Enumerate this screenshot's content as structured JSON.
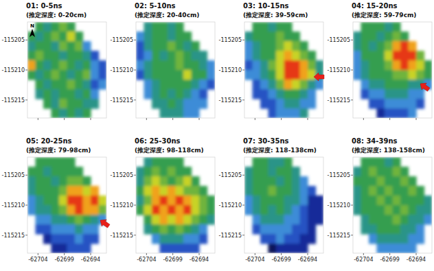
{
  "chart_data": [
    {
      "type": "heatmap",
      "title": "01: 0-5ns",
      "subtitle": "(推定深度: 0-20cm)",
      "x": [
        -62705.25,
        -62703.75,
        -62702.25,
        -62700.75,
        -62699.25,
        -62697.75,
        -62696.25,
        -62694.75,
        -62693.25,
        -62691.75
      ],
      "y": [
        -115202.8,
        -115204.4,
        -115206.0,
        -115207.6,
        -115209.2,
        -115210.8,
        -115212.4,
        -115214.0,
        -115215.6,
        -115217.2
      ],
      "cells": [
        [
          null,
          5,
          4,
          5,
          6,
          5,
          null,
          null,
          null,
          null
        ],
        [
          5,
          4,
          5,
          6,
          5,
          7,
          5,
          null,
          null,
          null
        ],
        [
          4,
          5,
          5,
          4,
          6,
          5,
          6,
          3,
          null,
          null
        ],
        [
          5,
          6,
          5,
          5,
          4,
          5,
          5,
          4,
          2,
          null
        ],
        [
          8,
          5,
          4,
          5,
          6,
          5,
          4,
          5,
          3,
          2
        ],
        [
          5,
          4,
          5,
          6,
          5,
          4,
          5,
          6,
          3,
          2
        ],
        [
          null,
          5,
          4,
          5,
          5,
          6,
          5,
          4,
          2,
          3
        ],
        [
          null,
          4,
          5,
          4,
          5,
          5,
          4,
          5,
          3,
          null
        ],
        [
          null,
          null,
          5,
          4,
          6,
          5,
          5,
          4,
          4,
          null
        ],
        [
          null,
          null,
          null,
          5,
          4,
          5,
          4,
          5,
          null,
          null
        ]
      ],
      "zlim": [
        0,
        10
      ],
      "xlim": [
        -62706,
        -62691
      ],
      "ylim": [
        -115218,
        -115202
      ],
      "xticks": [
        -62704,
        -62699,
        -62694
      ],
      "yticks": [
        -115205,
        -115210,
        -115215
      ],
      "tick_labels": "y",
      "annotations": [
        "N"
      ]
    },
    {
      "type": "heatmap",
      "title": "02: 5-10ns",
      "subtitle": "(推定深度: 20-40cm)",
      "x": [
        -62705.25,
        -62703.75,
        -62702.25,
        -62700.75,
        -62699.25,
        -62697.75,
        -62696.25,
        -62694.75,
        -62693.25,
        -62691.75
      ],
      "y": [
        -115202.8,
        -115204.4,
        -115206.0,
        -115207.6,
        -115209.2,
        -115210.8,
        -115212.4,
        -115214.0,
        -115215.6,
        -115217.2
      ],
      "cells": [
        [
          null,
          4,
          5,
          5,
          4,
          5,
          null,
          null,
          null,
          null
        ],
        [
          3,
          4,
          5,
          5,
          4,
          5,
          5,
          null,
          null,
          null
        ],
        [
          2,
          4,
          5,
          5,
          6,
          5,
          4,
          5,
          null,
          null
        ],
        [
          2,
          3,
          5,
          4,
          5,
          6,
          5,
          4,
          4,
          null
        ],
        [
          3,
          4,
          5,
          5,
          5,
          6,
          5,
          5,
          4,
          3
        ],
        [
          2,
          4,
          5,
          5,
          5,
          5,
          7,
          5,
          5,
          3
        ],
        [
          null,
          3,
          4,
          5,
          5,
          5,
          5,
          4,
          3,
          2
        ],
        [
          null,
          3,
          4,
          5,
          4,
          5,
          4,
          3,
          2,
          null
        ],
        [
          null,
          null,
          4,
          4,
          5,
          4,
          3,
          3,
          3,
          null
        ],
        [
          null,
          null,
          null,
          4,
          4,
          4,
          3,
          3,
          null,
          null
        ]
      ],
      "zlim": [
        0,
        10
      ],
      "xlim": [
        -62706,
        -62691
      ],
      "ylim": [
        -115218,
        -115202
      ],
      "xticks": [
        -62704,
        -62699,
        -62694
      ],
      "yticks": [
        -115205,
        -115210,
        -115215
      ],
      "tick_labels": "y"
    },
    {
      "type": "heatmap",
      "title": "03: 10-15ns",
      "subtitle": "(推定深度: 39-59cm)",
      "x": [
        -62705.25,
        -62703.75,
        -62702.25,
        -62700.75,
        -62699.25,
        -62697.75,
        -62696.25,
        -62694.75,
        -62693.25,
        -62691.75
      ],
      "y": [
        -115202.8,
        -115204.4,
        -115206.0,
        -115207.6,
        -115209.2,
        -115210.8,
        -115212.4,
        -115214.0,
        -115215.6,
        -115217.2
      ],
      "cells": [
        [
          null,
          5,
          5,
          4,
          5,
          5,
          null,
          null,
          null,
          null
        ],
        [
          4,
          5,
          5,
          5,
          6,
          5,
          5,
          null,
          null,
          null
        ],
        [
          3,
          4,
          5,
          5,
          6,
          7,
          6,
          5,
          null,
          null
        ],
        [
          3,
          4,
          5,
          5,
          7,
          8,
          7,
          6,
          5,
          null
        ],
        [
          2,
          3,
          4,
          6,
          7,
          9,
          9,
          8,
          6,
          4
        ],
        [
          3,
          3,
          4,
          5,
          7,
          9,
          9,
          8,
          7,
          4
        ],
        [
          null,
          2,
          3,
          4,
          6,
          8,
          7,
          6,
          4,
          3
        ],
        [
          null,
          2,
          2,
          3,
          4,
          5,
          5,
          4,
          3,
          null
        ],
        [
          null,
          null,
          2,
          2,
          3,
          4,
          4,
          3,
          3,
          null
        ],
        [
          null,
          null,
          null,
          2,
          3,
          3,
          3,
          4,
          null,
          null
        ]
      ],
      "zlim": [
        0,
        10
      ],
      "xlim": [
        -62706,
        -62691
      ],
      "ylim": [
        -115218,
        -115202
      ],
      "xticks": [
        -62704,
        -62699,
        -62694
      ],
      "yticks": [
        -115205,
        -115210,
        -115215
      ],
      "tick_labels": "y"
    },
    {
      "type": "heatmap",
      "title": "04: 15-20ns",
      "subtitle": "(推定深度: 59-79cm)",
      "x": [
        -62705.25,
        -62703.75,
        -62702.25,
        -62700.75,
        -62699.25,
        -62697.75,
        -62696.25,
        -62694.75,
        -62693.25,
        -62691.75
      ],
      "y": [
        -115202.8,
        -115204.4,
        -115206.0,
        -115207.6,
        -115209.2,
        -115210.8,
        -115212.4,
        -115214.0,
        -115215.6,
        -115217.2
      ],
      "cells": [
        [
          null,
          5,
          5,
          5,
          4,
          5,
          null,
          null,
          null,
          null
        ],
        [
          4,
          5,
          5,
          4,
          5,
          6,
          5,
          null,
          null,
          null
        ],
        [
          4,
          5,
          4,
          5,
          6,
          8,
          9,
          8,
          null,
          null
        ],
        [
          3,
          5,
          5,
          5,
          7,
          9,
          9,
          9,
          6,
          null
        ],
        [
          3,
          4,
          5,
          5,
          6,
          8,
          9,
          8,
          7,
          5
        ],
        [
          3,
          4,
          5,
          5,
          5,
          6,
          6,
          7,
          6,
          5
        ],
        [
          null,
          3,
          4,
          4,
          5,
          5,
          5,
          4,
          4,
          3
        ],
        [
          null,
          2,
          3,
          3,
          4,
          4,
          4,
          3,
          3,
          null
        ],
        [
          null,
          null,
          2,
          2,
          3,
          3,
          3,
          3,
          2,
          null
        ],
        [
          null,
          null,
          null,
          1,
          2,
          2,
          2,
          3,
          null,
          null
        ]
      ],
      "zlim": [
        0,
        10
      ],
      "xlim": [
        -62706,
        -62691
      ],
      "ylim": [
        -115218,
        -115202
      ],
      "xticks": [
        -62704,
        -62699,
        -62694
      ],
      "yticks": [
        -115205,
        -115210,
        -115215
      ],
      "tick_labels": "y"
    },
    {
      "type": "heatmap",
      "title": "05: 20-25ns",
      "subtitle": "(推定深度: 79-98cm)",
      "x": [
        -62705.25,
        -62703.75,
        -62702.25,
        -62700.75,
        -62699.25,
        -62697.75,
        -62696.25,
        -62694.75,
        -62693.25,
        -62691.75
      ],
      "y": [
        -115202.8,
        -115204.4,
        -115206.0,
        -115207.6,
        -115209.2,
        -115210.8,
        -115212.4,
        -115214.0,
        -115215.6,
        -115217.2
      ],
      "cells": [
        [
          null,
          5,
          5,
          5,
          5,
          5,
          null,
          null,
          null,
          null
        ],
        [
          5,
          5,
          4,
          5,
          5,
          5,
          5,
          null,
          null,
          null
        ],
        [
          4,
          5,
          5,
          4,
          5,
          6,
          6,
          5,
          null,
          null
        ],
        [
          4,
          5,
          5,
          5,
          6,
          8,
          8,
          7,
          8,
          null
        ],
        [
          3,
          4,
          5,
          5,
          7,
          9,
          9,
          8,
          9,
          7
        ],
        [
          3,
          4,
          4,
          5,
          6,
          8,
          9,
          8,
          8,
          6
        ],
        [
          null,
          3,
          3,
          4,
          4,
          5,
          6,
          5,
          4,
          3
        ],
        [
          null,
          2,
          2,
          3,
          3,
          3,
          4,
          3,
          3,
          null
        ],
        [
          null,
          null,
          1,
          2,
          2,
          2,
          3,
          2,
          2,
          null
        ],
        [
          null,
          null,
          null,
          1,
          1,
          2,
          2,
          2,
          null,
          null
        ]
      ],
      "zlim": [
        0,
        10
      ],
      "xlim": [
        -62706,
        -62691
      ],
      "ylim": [
        -115218,
        -115202
      ],
      "xticks": [
        -62704,
        -62699,
        -62694
      ],
      "yticks": [
        -115205,
        -115210,
        -115215
      ],
      "tick_labels": true
    },
    {
      "type": "heatmap",
      "title": "06: 25-30ns",
      "subtitle": "(推定深度: 98-118cm)",
      "x": [
        -62705.25,
        -62703.75,
        -62702.25,
        -62700.75,
        -62699.25,
        -62697.75,
        -62696.25,
        -62694.75,
        -62693.25,
        -62691.75
      ],
      "y": [
        -115202.8,
        -115204.4,
        -115206.0,
        -115207.6,
        -115209.2,
        -115210.8,
        -115212.4,
        -115214.0,
        -115215.6,
        -115217.2
      ],
      "cells": [
        [
          null,
          4,
          5,
          5,
          5,
          5,
          null,
          null,
          null,
          null
        ],
        [
          4,
          5,
          6,
          5,
          6,
          5,
          5,
          null,
          null,
          null
        ],
        [
          4,
          6,
          7,
          6,
          5,
          6,
          7,
          5,
          null,
          null
        ],
        [
          5,
          7,
          8,
          7,
          8,
          7,
          6,
          6,
          5,
          null
        ],
        [
          4,
          6,
          8,
          9,
          8,
          9,
          8,
          7,
          6,
          5
        ],
        [
          5,
          7,
          9,
          8,
          9,
          8,
          9,
          7,
          6,
          5
        ],
        [
          null,
          5,
          7,
          8,
          7,
          8,
          7,
          6,
          5,
          4
        ],
        [
          null,
          4,
          5,
          6,
          5,
          6,
          5,
          4,
          3,
          null
        ],
        [
          null,
          null,
          3,
          4,
          4,
          4,
          3,
          3,
          2,
          null
        ],
        [
          null,
          null,
          null,
          2,
          2,
          2,
          2,
          2,
          null,
          null
        ]
      ],
      "zlim": [
        0,
        10
      ],
      "xlim": [
        -62706,
        -62691
      ],
      "ylim": [
        -115218,
        -115202
      ],
      "xticks": [
        -62704,
        -62699,
        -62694
      ],
      "yticks": [
        -115205,
        -115210,
        -115215
      ],
      "tick_labels": true
    },
    {
      "type": "heatmap",
      "title": "07: 30-35ns",
      "subtitle": "(推定深度: 118-138cm)",
      "x": [
        -62705.25,
        -62703.75,
        -62702.25,
        -62700.75,
        -62699.25,
        -62697.75,
        -62696.25,
        -62694.75,
        -62693.25,
        -62691.75
      ],
      "y": [
        -115202.8,
        -115204.4,
        -115206.0,
        -115207.6,
        -115209.2,
        -115210.8,
        -115212.4,
        -115214.0,
        -115215.6,
        -115217.2
      ],
      "cells": [
        [
          null,
          5,
          5,
          4,
          4,
          5,
          null,
          null,
          null,
          null
        ],
        [
          4,
          5,
          5,
          4,
          5,
          5,
          4,
          null,
          null,
          null
        ],
        [
          4,
          5,
          5,
          5,
          4,
          5,
          4,
          3,
          null,
          null
        ],
        [
          4,
          5,
          5,
          6,
          5,
          5,
          4,
          3,
          2,
          null
        ],
        [
          3,
          4,
          5,
          5,
          5,
          4,
          4,
          3,
          1,
          1
        ],
        [
          3,
          4,
          5,
          4,
          5,
          4,
          3,
          2,
          1,
          1
        ],
        [
          null,
          3,
          4,
          4,
          4,
          3,
          3,
          2,
          1,
          1
        ],
        [
          null,
          2,
          3,
          3,
          3,
          3,
          2,
          2,
          1,
          null
        ],
        [
          null,
          null,
          2,
          2,
          3,
          2,
          2,
          1,
          1,
          null
        ],
        [
          null,
          null,
          null,
          0,
          1,
          1,
          1,
          1,
          null,
          null
        ]
      ],
      "zlim": [
        0,
        10
      ],
      "xlim": [
        -62706,
        -62691
      ],
      "ylim": [
        -115218,
        -115202
      ],
      "xticks": [
        -62704,
        -62699,
        -62694
      ],
      "yticks": [
        -115205,
        -115210,
        -115215
      ],
      "tick_labels": true
    },
    {
      "type": "heatmap",
      "title": "08: 34-39ns",
      "subtitle": "(推定深度: 138-158cm)",
      "x": [
        -62705.25,
        -62703.75,
        -62702.25,
        -62700.75,
        -62699.25,
        -62697.75,
        -62696.25,
        -62694.75,
        -62693.25,
        -62691.75
      ],
      "y": [
        -115202.8,
        -115204.4,
        -115206.0,
        -115207.6,
        -115209.2,
        -115210.8,
        -115212.4,
        -115214.0,
        -115215.6,
        -115217.2
      ],
      "cells": [
        [
          null,
          5,
          5,
          5,
          4,
          5,
          null,
          null,
          null,
          null
        ],
        [
          4,
          5,
          6,
          5,
          5,
          6,
          5,
          null,
          null,
          null
        ],
        [
          5,
          5,
          5,
          6,
          5,
          5,
          6,
          5,
          null,
          null
        ],
        [
          4,
          5,
          6,
          5,
          6,
          5,
          5,
          6,
          5,
          null
        ],
        [
          4,
          5,
          5,
          6,
          5,
          6,
          5,
          5,
          5,
          4
        ],
        [
          4,
          5,
          5,
          5,
          6,
          5,
          6,
          5,
          4,
          4
        ],
        [
          null,
          4,
          5,
          5,
          5,
          6,
          5,
          4,
          4,
          3
        ],
        [
          null,
          4,
          4,
          5,
          5,
          5,
          4,
          4,
          3,
          null
        ],
        [
          null,
          null,
          3,
          4,
          4,
          4,
          4,
          3,
          3,
          null
        ],
        [
          null,
          null,
          null,
          3,
          3,
          3,
          3,
          3,
          null,
          null
        ]
      ],
      "zlim": [
        0,
        10
      ],
      "xlim": [
        -62706,
        -62691
      ],
      "ylim": [
        -115218,
        -115202
      ],
      "xticks": [
        -62704,
        -62699,
        -62694
      ],
      "yticks": [
        -115205,
        -115210,
        -115215
      ],
      "tick_labels": true
    }
  ]
}
